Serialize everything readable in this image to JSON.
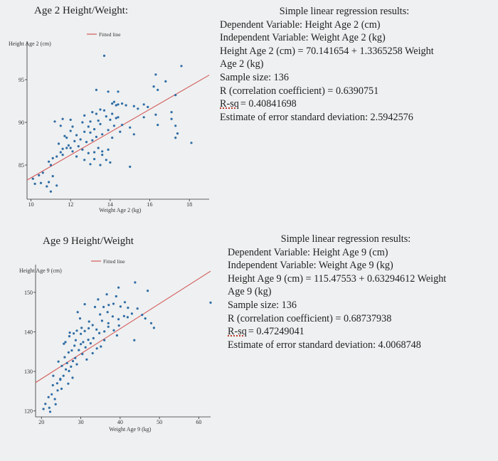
{
  "colors": {
    "point": "#2e6ca4",
    "fit_line": "#d45a5a",
    "axis": "#333333",
    "page_bg": "#eef0f1"
  },
  "chart_data": [
    {
      "type": "scatter",
      "title": "Age 2 Height/Weight:",
      "xlabel": "Weight Age 2 (kg)",
      "ylabel": "Height Age 2 (cm)",
      "legend": "Fitted line",
      "legend_position": "top-center",
      "xlim": [
        9.8,
        19.0
      ],
      "ylim": [
        81.0,
        99.5
      ],
      "xticks": [
        10,
        12,
        14,
        16,
        18
      ],
      "yticks": [
        85,
        90,
        95
      ],
      "fit": {
        "intercept": 70.141654,
        "slope": 1.3365258
      },
      "grid": false,
      "points": [
        [
          10.1,
          83.4
        ],
        [
          10.2,
          82.8
        ],
        [
          10.4,
          83.8
        ],
        [
          10.5,
          82.9
        ],
        [
          10.6,
          84.1
        ],
        [
          10.8,
          82.5
        ],
        [
          10.9,
          83.0
        ],
        [
          11.0,
          81.9
        ],
        [
          11.1,
          83.7
        ],
        [
          11.3,
          82.6
        ],
        [
          10.9,
          85.4
        ],
        [
          11.0,
          85.0
        ],
        [
          11.3,
          86.0
        ],
        [
          11.5,
          86.5
        ],
        [
          11.1,
          85.8
        ],
        [
          11.4,
          87.5
        ],
        [
          11.6,
          86.2
        ],
        [
          11.8,
          87.0
        ],
        [
          11.7,
          88.4
        ],
        [
          11.6,
          86.9
        ],
        [
          11.9,
          87.3
        ],
        [
          11.8,
          88.2
        ],
        [
          12.0,
          87.0
        ],
        [
          12.1,
          86.6
        ],
        [
          12.2,
          87.8
        ],
        [
          12.0,
          89.0
        ],
        [
          12.3,
          88.5
        ],
        [
          12.1,
          89.5
        ],
        [
          12.4,
          87.2
        ],
        [
          12.6,
          86.8
        ],
        [
          12.5,
          88.0
        ],
        [
          12.7,
          88.9
        ],
        [
          12.8,
          87.7
        ],
        [
          12.9,
          86.4
        ],
        [
          12.3,
          86.0
        ],
        [
          11.5,
          89.6
        ],
        [
          11.2,
          90.1
        ],
        [
          11.6,
          90.4
        ],
        [
          12.0,
          90.3
        ],
        [
          12.6,
          90.0
        ],
        [
          12.7,
          90.8
        ],
        [
          12.9,
          89.5
        ],
        [
          13.0,
          88.8
        ],
        [
          13.1,
          87.9
        ],
        [
          13.2,
          89.2
        ],
        [
          13.3,
          88.3
        ],
        [
          13.4,
          90.2
        ],
        [
          13.5,
          89.8
        ],
        [
          13.6,
          88.6
        ],
        [
          13.3,
          91.0
        ],
        [
          13.7,
          91.4
        ],
        [
          13.8,
          90.7
        ],
        [
          13.5,
          91.5
        ],
        [
          13.9,
          89.1
        ],
        [
          14.0,
          90.3
        ],
        [
          14.1,
          91.0
        ],
        [
          14.2,
          89.6
        ],
        [
          14.3,
          90.5
        ],
        [
          14.4,
          90.6
        ],
        [
          14.5,
          88.9
        ],
        [
          14.6,
          89.7
        ],
        [
          13.1,
          91.2
        ],
        [
          13.0,
          90.1
        ],
        [
          14.1,
          92.2
        ],
        [
          14.3,
          92.0
        ],
        [
          14.4,
          92.1
        ],
        [
          14.6,
          92.2
        ],
        [
          14.2,
          92.4
        ],
        [
          14.8,
          92.0
        ],
        [
          14.1,
          88.2
        ],
        [
          13.9,
          86.8
        ],
        [
          13.0,
          85.1
        ],
        [
          13.2,
          85.7
        ],
        [
          13.5,
          85.0
        ],
        [
          13.8,
          85.6
        ],
        [
          13.2,
          86.5
        ],
        [
          13.6,
          86.2
        ],
        [
          13.4,
          87.0
        ],
        [
          14.0,
          85.3
        ],
        [
          15.0,
          89.4
        ],
        [
          15.2,
          88.6
        ],
        [
          15.0,
          84.8
        ],
        [
          15.4,
          91.6
        ],
        [
          15.2,
          91.9
        ],
        [
          15.7,
          92.1
        ],
        [
          15.9,
          91.8
        ],
        [
          15.7,
          90.6
        ],
        [
          16.3,
          90.9
        ],
        [
          16.4,
          89.7
        ],
        [
          16.2,
          94.2
        ],
        [
          16.3,
          95.6
        ],
        [
          16.4,
          93.8
        ],
        [
          17.1,
          91.2
        ],
        [
          17.3,
          89.6
        ],
        [
          17.4,
          88.7
        ],
        [
          17.3,
          88.2
        ],
        [
          17.6,
          96.6
        ],
        [
          13.3,
          93.8
        ],
        [
          13.9,
          93.6
        ],
        [
          14.4,
          93.6
        ],
        [
          13.7,
          97.8
        ],
        [
          16.8,
          94.8
        ],
        [
          17.3,
          93.2
        ],
        [
          18.1,
          87.6
        ],
        [
          17.1,
          90.4
        ],
        [
          12.7,
          85.6
        ],
        [
          13.6,
          86.6
        ]
      ]
    },
    {
      "type": "scatter",
      "title": "Age 9 Height/Weight",
      "xlabel": "Weight Age 9 (kg)",
      "ylabel": "Height Age 9 (cm)",
      "legend": "Fitted line",
      "legend_position": "top-center",
      "xlim": [
        18.5,
        63.0
      ],
      "ylim": [
        118.5,
        157.0
      ],
      "xticks": [
        20,
        30,
        40,
        50,
        60
      ],
      "yticks": [
        120,
        130,
        140,
        150
      ],
      "fit": {
        "intercept": 115.47553,
        "slope": 0.63294612
      },
      "grid": false,
      "points": [
        [
          20.5,
          120.5
        ],
        [
          21.0,
          121.8
        ],
        [
          22.0,
          120.8
        ],
        [
          21.8,
          123.5
        ],
        [
          22.6,
          124.2
        ],
        [
          23.4,
          123.0
        ],
        [
          24.1,
          125.2
        ],
        [
          22.9,
          126.5
        ],
        [
          24.0,
          127.0
        ],
        [
          24.8,
          128.1
        ],
        [
          25.6,
          128.9
        ],
        [
          26.2,
          130.5
        ],
        [
          27.0,
          130.1
        ],
        [
          25.2,
          131.4
        ],
        [
          26.5,
          132.1
        ],
        [
          27.5,
          131.2
        ],
        [
          28.0,
          132.6
        ],
        [
          28.6,
          133.4
        ],
        [
          29.0,
          131.8
        ],
        [
          24.3,
          132.5
        ],
        [
          25.9,
          133.6
        ],
        [
          26.9,
          134.8
        ],
        [
          27.7,
          135.3
        ],
        [
          28.4,
          136.5
        ],
        [
          29.5,
          135.4
        ],
        [
          30.0,
          136.9
        ],
        [
          30.6,
          137.4
        ],
        [
          31.2,
          136.1
        ],
        [
          31.9,
          138.0
        ],
        [
          32.5,
          137.1
        ],
        [
          33.2,
          138.4
        ],
        [
          26.1,
          137.4
        ],
        [
          27.1,
          138.9
        ],
        [
          28.2,
          139.6
        ],
        [
          29.0,
          140.3
        ],
        [
          30.2,
          141.0
        ],
        [
          31.0,
          140.2
        ],
        [
          32.0,
          140.9
        ],
        [
          33.0,
          141.7
        ],
        [
          34.0,
          140.6
        ],
        [
          34.7,
          139.7
        ],
        [
          36.0,
          140.1
        ],
        [
          37.0,
          141.3
        ],
        [
          38.4,
          140.4
        ],
        [
          39.2,
          139.1
        ],
        [
          39.6,
          143.2
        ],
        [
          38.1,
          143.9
        ],
        [
          36.8,
          145.0
        ],
        [
          34.9,
          144.4
        ],
        [
          35.8,
          146.3
        ],
        [
          37.1,
          146.8
        ],
        [
          38.3,
          147.1
        ],
        [
          40.1,
          146.4
        ],
        [
          41.2,
          147.5
        ],
        [
          42.0,
          146.1
        ],
        [
          41.9,
          143.7
        ],
        [
          43.0,
          144.6
        ],
        [
          37.0,
          142.2
        ],
        [
          39.7,
          141.6
        ],
        [
          36.0,
          137.9
        ],
        [
          35.1,
          136.3
        ],
        [
          34.1,
          135.8
        ],
        [
          33.0,
          134.6
        ],
        [
          31.5,
          133.0
        ],
        [
          30.4,
          134.4
        ],
        [
          27.9,
          128.4
        ],
        [
          26.8,
          126.9
        ],
        [
          25.1,
          125.6
        ],
        [
          23.6,
          121.7
        ],
        [
          22.2,
          119.8
        ],
        [
          29.8,
          143.4
        ],
        [
          31.0,
          147.0
        ],
        [
          33.6,
          146.3
        ],
        [
          34.4,
          148.2
        ],
        [
          36.6,
          149.5
        ],
        [
          39.0,
          149.0
        ],
        [
          39.6,
          151.2
        ],
        [
          43.8,
          152.5
        ],
        [
          47.0,
          150.4
        ],
        [
          46.4,
          143.4
        ],
        [
          43.6,
          137.9
        ],
        [
          45.6,
          144.3
        ],
        [
          47.9,
          142.2
        ],
        [
          48.6,
          141.0
        ],
        [
          30.0,
          139.5
        ],
        [
          32.1,
          142.6
        ],
        [
          28.7,
          137.9
        ],
        [
          63.0,
          147.4
        ],
        [
          27.2,
          139.8
        ],
        [
          25.7,
          137.0
        ],
        [
          29.2,
          145.0
        ],
        [
          35.4,
          142.8
        ],
        [
          41.0,
          144.0
        ],
        [
          44.4,
          145.9
        ],
        [
          24.8,
          127.9
        ],
        [
          23.0,
          128.9
        ]
      ]
    }
  ],
  "stats": [
    {
      "header": "Simple linear regression results:",
      "dependent": "Dependent Variable: Height Age 2 (cm)",
      "independent": "Independent Variable: Weight Age 2 (kg)",
      "equation": "Height Age 2 (cm) = 70.141654 + 1.3365258 Weight Age 2 (kg)",
      "sample_size": "Sample size: 136",
      "r": "R (correlation coefficient) = 0.6390751",
      "rsq_label": "R-sq",
      "rsq_value": "= 0.40841698",
      "stderr": "Estimate of error standard deviation: 2.5942576"
    },
    {
      "header": "Simple linear regression results:",
      "dependent": "Dependent Variable: Height Age 9 (cm)",
      "independent": "Independent Variable: Weight Age 9 (kg)",
      "equation": "Height Age 9 (cm) = 115.47553 + 0.63294612 Weight Age 9 (kg)",
      "sample_size": "Sample size: 136",
      "r": "R (correlation coefficient) = 0.68737938",
      "rsq_label": "R-sq",
      "rsq_value": "= 0.47249041",
      "stderr": "Estimate of error standard deviation: 4.0068748"
    }
  ]
}
